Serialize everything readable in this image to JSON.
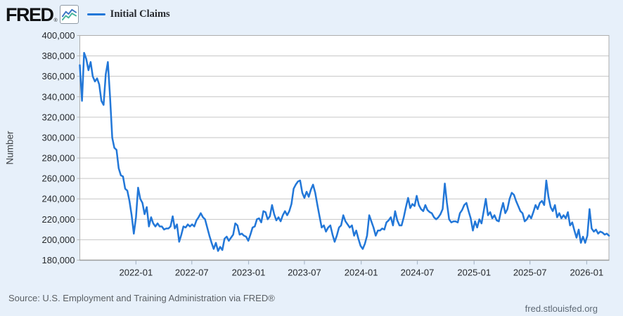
{
  "header": {
    "logo_text": "FRED",
    "logo_reg": "®",
    "legend": {
      "label": "Initial Claims",
      "swatch_color": "#2277d8"
    }
  },
  "footer": {
    "source": "Source: U.S. Employment and Training Administration via FRED®",
    "site": "fred.stlouisfed.org"
  },
  "chart_data": {
    "type": "line",
    "series_name": "Initial Claims",
    "ylabel": "Number",
    "ylim": [
      180000,
      400000
    ],
    "y_tick_step": 20000,
    "grid": "horizontal",
    "legend_position": "top-left",
    "line_color": "#2277d8",
    "frequency": "weekly",
    "start_date": "2021-07-03",
    "end_date": "2026-03-14",
    "y_ticks": [
      {
        "value": 400000,
        "label": "400,000"
      },
      {
        "value": 380000,
        "label": "380,000"
      },
      {
        "value": 360000,
        "label": "360,000"
      },
      {
        "value": 340000,
        "label": "340,000"
      },
      {
        "value": 320000,
        "label": "320,000"
      },
      {
        "value": 300000,
        "label": "300,000"
      },
      {
        "value": 280000,
        "label": "280,000"
      },
      {
        "value": 260000,
        "label": "260,000"
      },
      {
        "value": 240000,
        "label": "240,000"
      },
      {
        "value": 220000,
        "label": "220,000"
      },
      {
        "value": 200000,
        "label": "200,000"
      },
      {
        "value": 180000,
        "label": "180,000"
      }
    ],
    "x_ticks": [
      {
        "date": "2022-01-01",
        "label": "2022-01"
      },
      {
        "date": "2022-07-01",
        "label": "2022-07"
      },
      {
        "date": "2023-01-01",
        "label": "2023-01"
      },
      {
        "date": "2023-07-01",
        "label": "2023-07"
      },
      {
        "date": "2024-01-01",
        "label": "2024-01"
      },
      {
        "date": "2024-07-01",
        "label": "2024-07"
      },
      {
        "date": "2025-01-01",
        "label": "2025-01"
      },
      {
        "date": "2025-07-01",
        "label": "2025-07"
      },
      {
        "date": "2026-01-01",
        "label": "2026-01"
      }
    ],
    "y": [
      371000,
      336000,
      383000,
      377000,
      366000,
      374000,
      360000,
      355000,
      358000,
      352000,
      336000,
      332000,
      362000,
      374000,
      340000,
      300000,
      290000,
      288000,
      270000,
      263000,
      262000,
      250000,
      248000,
      238000,
      224000,
      206000,
      222000,
      251000,
      240000,
      236000,
      225000,
      232000,
      213000,
      222000,
      216000,
      213000,
      216000,
      213000,
      213000,
      210000,
      211000,
      211000,
      213000,
      223000,
      211000,
      215000,
      198000,
      205000,
      213000,
      212000,
      215000,
      213000,
      215000,
      213000,
      219000,
      222000,
      226000,
      222000,
      220000,
      212000,
      204000,
      197000,
      191000,
      197000,
      189000,
      193000,
      190000,
      201000,
      203000,
      199000,
      202000,
      205000,
      216000,
      214000,
      205000,
      206000,
      204000,
      203000,
      199000,
      205000,
      212000,
      213000,
      220000,
      221000,
      217000,
      228000,
      227000,
      220000,
      223000,
      234000,
      225000,
      219000,
      222000,
      218000,
      224000,
      228000,
      224000,
      228000,
      235000,
      250000,
      254000,
      257000,
      258000,
      246000,
      241000,
      247000,
      242000,
      249000,
      254000,
      246000,
      234000,
      223000,
      212000,
      214000,
      208000,
      212000,
      214000,
      205000,
      198000,
      204000,
      212000,
      214000,
      224000,
      218000,
      215000,
      212000,
      214000,
      204000,
      209000,
      201000,
      194000,
      191000,
      196000,
      204000,
      224000,
      218000,
      212000,
      204000,
      209000,
      209000,
      211000,
      210000,
      217000,
      219000,
      222000,
      214000,
      228000,
      219000,
      214000,
      214000,
      222000,
      232000,
      241000,
      231000,
      235000,
      233000,
      243000,
      234000,
      230000,
      228000,
      234000,
      229000,
      227000,
      226000,
      222000,
      220000,
      222000,
      225000,
      230000,
      255000,
      236000,
      220000,
      217000,
      218000,
      218000,
      217000,
      226000,
      229000,
      234000,
      236000,
      228000,
      221000,
      209000,
      218000,
      212000,
      220000,
      216000,
      228000,
      240000,
      224000,
      227000,
      221000,
      224000,
      219000,
      218000,
      228000,
      236000,
      226000,
      230000,
      240000,
      246000,
      244000,
      238000,
      233000,
      228000,
      226000,
      218000,
      220000,
      224000,
      221000,
      227000,
      234000,
      230000,
      236000,
      238000,
      234000,
      258000,
      242000,
      232000,
      228000,
      234000,
      222000,
      226000,
      221000,
      224000,
      221000,
      227000,
      214000,
      217000,
      209000,
      202000,
      210000,
      197000,
      203000,
      197000,
      204000,
      230000,
      211000,
      208000,
      210000,
      206000,
      208000,
      207000,
      205000,
      206000,
      204000
    ]
  }
}
